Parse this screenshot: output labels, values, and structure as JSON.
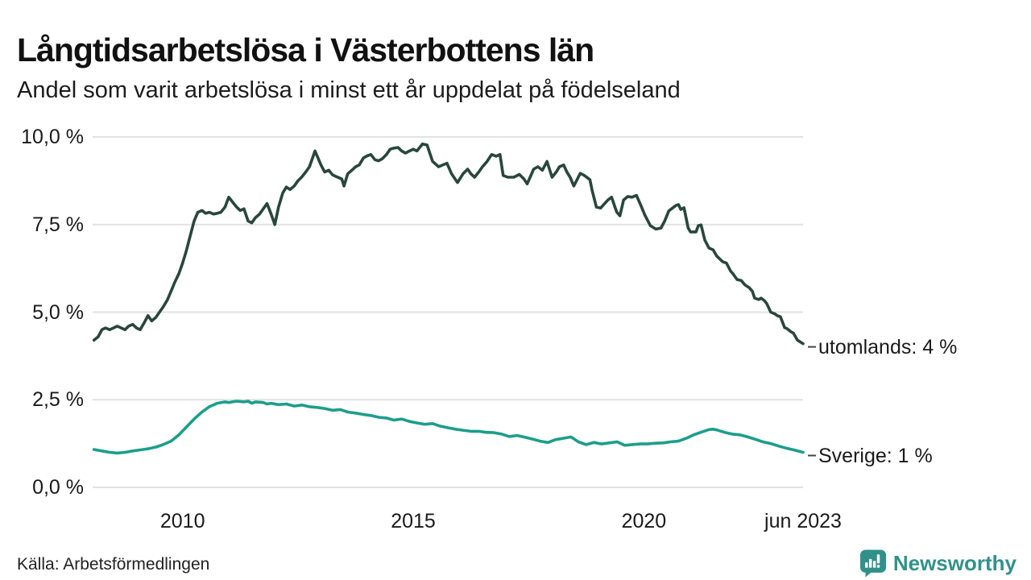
{
  "footer": {
    "source": "Källa: Arbetsförmedlingen",
    "brand": "Newsworthy"
  },
  "colors": {
    "utomlands": "#28463d",
    "sverige": "#1b9e8b",
    "gridline": "#e2e2e2",
    "label_dash": "#444444",
    "brand": "#31918a",
    "text": "#1a1a1a"
  },
  "chart_data": {
    "type": "line",
    "title": "Långtidsarbetslösa i Västerbottens län",
    "subtitle": "Andel som varit arbetslösa i minst ett år uppdelat på födelseland",
    "unit": "%",
    "grid": "horizontal-only",
    "legend_position": "right-end-labels",
    "xlim": [
      2008.05,
      2023.45
    ],
    "ylim": [
      0,
      10
    ],
    "x_ticks": [
      {
        "label": "2010",
        "x": 2010
      },
      {
        "label": "2015",
        "x": 2015
      },
      {
        "label": "2020",
        "x": 2020
      },
      {
        "label": "jun 2023",
        "x": 2023.45
      }
    ],
    "y_ticks": [
      {
        "label": "0,0 %",
        "value": 0
      },
      {
        "label": "2,5 %",
        "value": 2.5
      },
      {
        "label": "5,0 %",
        "value": 5
      },
      {
        "label": "7,5 %",
        "value": 7.5
      },
      {
        "label": "10,0 %",
        "value": 10
      }
    ],
    "series": [
      {
        "name": "utomlands",
        "label": "utomlands: 4 %",
        "end_value": "4 %",
        "color_key": "utomlands",
        "points": [
          [
            2008.08,
            4.2
          ],
          [
            2008.17,
            4.3
          ],
          [
            2008.25,
            4.5
          ],
          [
            2008.33,
            4.55
          ],
          [
            2008.42,
            4.5
          ],
          [
            2008.5,
            4.55
          ],
          [
            2008.58,
            4.6
          ],
          [
            2008.67,
            4.55
          ],
          [
            2008.75,
            4.5
          ],
          [
            2008.83,
            4.6
          ],
          [
            2008.92,
            4.65
          ],
          [
            2009.0,
            4.55
          ],
          [
            2009.08,
            4.5
          ],
          [
            2009.17,
            4.7
          ],
          [
            2009.25,
            4.9
          ],
          [
            2009.33,
            4.75
          ],
          [
            2009.42,
            4.85
          ],
          [
            2009.5,
            5.0
          ],
          [
            2009.58,
            5.15
          ],
          [
            2009.67,
            5.35
          ],
          [
            2009.75,
            5.6
          ],
          [
            2009.83,
            5.85
          ],
          [
            2009.92,
            6.1
          ],
          [
            2010.0,
            6.4
          ],
          [
            2010.08,
            6.75
          ],
          [
            2010.17,
            7.2
          ],
          [
            2010.25,
            7.6
          ],
          [
            2010.33,
            7.85
          ],
          [
            2010.42,
            7.9
          ],
          [
            2010.5,
            7.82
          ],
          [
            2010.58,
            7.85
          ],
          [
            2010.67,
            7.8
          ],
          [
            2010.75,
            7.82
          ],
          [
            2010.83,
            7.85
          ],
          [
            2010.92,
            8.0
          ],
          [
            2011.0,
            8.28
          ],
          [
            2011.08,
            8.15
          ],
          [
            2011.17,
            8.0
          ],
          [
            2011.25,
            7.9
          ],
          [
            2011.33,
            7.95
          ],
          [
            2011.42,
            7.6
          ],
          [
            2011.5,
            7.55
          ],
          [
            2011.58,
            7.7
          ],
          [
            2011.67,
            7.8
          ],
          [
            2011.75,
            7.95
          ],
          [
            2011.83,
            8.1
          ],
          [
            2011.92,
            7.8
          ],
          [
            2012.0,
            7.5
          ],
          [
            2012.08,
            8.0
          ],
          [
            2012.17,
            8.4
          ],
          [
            2012.25,
            8.57
          ],
          [
            2012.33,
            8.5
          ],
          [
            2012.42,
            8.6
          ],
          [
            2012.5,
            8.75
          ],
          [
            2012.58,
            8.85
          ],
          [
            2012.67,
            9.0
          ],
          [
            2012.75,
            9.15
          ],
          [
            2012.87,
            9.6
          ],
          [
            2013.0,
            9.2
          ],
          [
            2013.08,
            9.0
          ],
          [
            2013.17,
            9.05
          ],
          [
            2013.25,
            8.92
          ],
          [
            2013.33,
            8.87
          ],
          [
            2013.45,
            8.8
          ],
          [
            2013.5,
            8.6
          ],
          [
            2013.58,
            8.95
          ],
          [
            2013.67,
            9.05
          ],
          [
            2013.75,
            9.15
          ],
          [
            2013.83,
            9.2
          ],
          [
            2013.92,
            9.4
          ],
          [
            2014.0,
            9.46
          ],
          [
            2014.08,
            9.5
          ],
          [
            2014.17,
            9.35
          ],
          [
            2014.25,
            9.32
          ],
          [
            2014.33,
            9.38
          ],
          [
            2014.42,
            9.5
          ],
          [
            2014.5,
            9.65
          ],
          [
            2014.58,
            9.68
          ],
          [
            2014.67,
            9.7
          ],
          [
            2014.75,
            9.6
          ],
          [
            2014.83,
            9.54
          ],
          [
            2014.92,
            9.6
          ],
          [
            2015.0,
            9.65
          ],
          [
            2015.08,
            9.6
          ],
          [
            2015.2,
            9.8
          ],
          [
            2015.3,
            9.77
          ],
          [
            2015.42,
            9.3
          ],
          [
            2015.55,
            9.15
          ],
          [
            2015.73,
            9.25
          ],
          [
            2015.83,
            8.95
          ],
          [
            2015.96,
            8.7
          ],
          [
            2016.08,
            8.95
          ],
          [
            2016.18,
            9.08
          ],
          [
            2016.25,
            8.95
          ],
          [
            2016.33,
            8.85
          ],
          [
            2016.42,
            9.0
          ],
          [
            2016.5,
            9.15
          ],
          [
            2016.6,
            9.3
          ],
          [
            2016.7,
            9.5
          ],
          [
            2016.8,
            9.45
          ],
          [
            2016.88,
            9.5
          ],
          [
            2016.95,
            8.9
          ],
          [
            2017.05,
            8.85
          ],
          [
            2017.18,
            8.85
          ],
          [
            2017.3,
            8.93
          ],
          [
            2017.4,
            8.8
          ],
          [
            2017.47,
            8.66
          ],
          [
            2017.61,
            9.08
          ],
          [
            2017.7,
            9.15
          ],
          [
            2017.8,
            9.05
          ],
          [
            2017.9,
            9.3
          ],
          [
            2018.01,
            8.85
          ],
          [
            2018.1,
            9.0
          ],
          [
            2018.17,
            9.15
          ],
          [
            2018.26,
            9.2
          ],
          [
            2018.33,
            9.0
          ],
          [
            2018.4,
            8.85
          ],
          [
            2018.48,
            8.6
          ],
          [
            2018.62,
            8.96
          ],
          [
            2018.71,
            8.9
          ],
          [
            2018.83,
            8.78
          ],
          [
            2018.88,
            8.46
          ],
          [
            2018.97,
            8.0
          ],
          [
            2019.06,
            7.97
          ],
          [
            2019.15,
            8.1
          ],
          [
            2019.22,
            8.2
          ],
          [
            2019.3,
            8.28
          ],
          [
            2019.41,
            7.86
          ],
          [
            2019.48,
            7.75
          ],
          [
            2019.56,
            8.2
          ],
          [
            2019.65,
            8.3
          ],
          [
            2019.74,
            8.28
          ],
          [
            2019.84,
            8.33
          ],
          [
            2019.95,
            8.0
          ],
          [
            2020.02,
            7.77
          ],
          [
            2020.14,
            7.47
          ],
          [
            2020.26,
            7.37
          ],
          [
            2020.37,
            7.4
          ],
          [
            2020.45,
            7.6
          ],
          [
            2020.54,
            7.89
          ],
          [
            2020.7,
            8.05
          ],
          [
            2020.75,
            8.07
          ],
          [
            2020.8,
            7.93
          ],
          [
            2020.87,
            7.98
          ],
          [
            2020.96,
            7.4
          ],
          [
            2021.01,
            7.29
          ],
          [
            2021.13,
            7.29
          ],
          [
            2021.18,
            7.47
          ],
          [
            2021.24,
            7.49
          ],
          [
            2021.32,
            7.06
          ],
          [
            2021.41,
            6.83
          ],
          [
            2021.5,
            6.78
          ],
          [
            2021.58,
            6.6
          ],
          [
            2021.71,
            6.44
          ],
          [
            2021.79,
            6.4
          ],
          [
            2021.88,
            6.17
          ],
          [
            2021.93,
            6.1
          ],
          [
            2022.02,
            5.93
          ],
          [
            2022.11,
            5.9
          ],
          [
            2022.19,
            5.78
          ],
          [
            2022.28,
            5.7
          ],
          [
            2022.35,
            5.6
          ],
          [
            2022.4,
            5.4
          ],
          [
            2022.49,
            5.36
          ],
          [
            2022.54,
            5.4
          ],
          [
            2022.61,
            5.33
          ],
          [
            2022.66,
            5.25
          ],
          [
            2022.75,
            5.0
          ],
          [
            2022.84,
            4.95
          ],
          [
            2022.89,
            4.9
          ],
          [
            2022.96,
            4.87
          ],
          [
            2023.05,
            4.56
          ],
          [
            2023.1,
            4.53
          ],
          [
            2023.19,
            4.44
          ],
          [
            2023.24,
            4.4
          ],
          [
            2023.33,
            4.2
          ],
          [
            2023.45,
            4.1
          ]
        ]
      },
      {
        "name": "Sverige",
        "label": "Sverige: 1 %",
        "end_value": "1 %",
        "color_key": "sverige",
        "points": [
          [
            2008.08,
            1.08
          ],
          [
            2008.25,
            1.04
          ],
          [
            2008.42,
            1.0
          ],
          [
            2008.58,
            0.98
          ],
          [
            2008.75,
            1.0
          ],
          [
            2008.92,
            1.04
          ],
          [
            2009.08,
            1.07
          ],
          [
            2009.25,
            1.1
          ],
          [
            2009.42,
            1.15
          ],
          [
            2009.58,
            1.22
          ],
          [
            2009.75,
            1.32
          ],
          [
            2009.92,
            1.5
          ],
          [
            2010.08,
            1.72
          ],
          [
            2010.25,
            1.95
          ],
          [
            2010.42,
            2.15
          ],
          [
            2010.58,
            2.3
          ],
          [
            2010.75,
            2.4
          ],
          [
            2010.92,
            2.44
          ],
          [
            2011.0,
            2.42
          ],
          [
            2011.08,
            2.44
          ],
          [
            2011.17,
            2.46
          ],
          [
            2011.33,
            2.44
          ],
          [
            2011.42,
            2.46
          ],
          [
            2011.5,
            2.4
          ],
          [
            2011.58,
            2.44
          ],
          [
            2011.75,
            2.42
          ],
          [
            2011.83,
            2.38
          ],
          [
            2011.92,
            2.4
          ],
          [
            2012.08,
            2.36
          ],
          [
            2012.25,
            2.38
          ],
          [
            2012.42,
            2.32
          ],
          [
            2012.58,
            2.35
          ],
          [
            2012.75,
            2.3
          ],
          [
            2012.92,
            2.28
          ],
          [
            2013.08,
            2.25
          ],
          [
            2013.25,
            2.2
          ],
          [
            2013.42,
            2.22
          ],
          [
            2013.58,
            2.15
          ],
          [
            2013.75,
            2.12
          ],
          [
            2013.92,
            2.08
          ],
          [
            2014.08,
            2.05
          ],
          [
            2014.25,
            2.0
          ],
          [
            2014.42,
            1.98
          ],
          [
            2014.58,
            1.92
          ],
          [
            2014.75,
            1.95
          ],
          [
            2014.92,
            1.88
          ],
          [
            2015.08,
            1.84
          ],
          [
            2015.25,
            1.8
          ],
          [
            2015.42,
            1.82
          ],
          [
            2015.58,
            1.75
          ],
          [
            2015.75,
            1.7
          ],
          [
            2015.92,
            1.66
          ],
          [
            2016.08,
            1.63
          ],
          [
            2016.25,
            1.6
          ],
          [
            2016.42,
            1.6
          ],
          [
            2016.58,
            1.57
          ],
          [
            2016.75,
            1.56
          ],
          [
            2016.92,
            1.52
          ],
          [
            2017.08,
            1.45
          ],
          [
            2017.25,
            1.48
          ],
          [
            2017.42,
            1.43
          ],
          [
            2017.58,
            1.38
          ],
          [
            2017.75,
            1.32
          ],
          [
            2017.92,
            1.28
          ],
          [
            2018.08,
            1.36
          ],
          [
            2018.25,
            1.4
          ],
          [
            2018.42,
            1.44
          ],
          [
            2018.58,
            1.3
          ],
          [
            2018.75,
            1.22
          ],
          [
            2018.92,
            1.28
          ],
          [
            2019.08,
            1.24
          ],
          [
            2019.25,
            1.27
          ],
          [
            2019.42,
            1.3
          ],
          [
            2019.58,
            1.2
          ],
          [
            2019.75,
            1.22
          ],
          [
            2019.92,
            1.24
          ],
          [
            2020.08,
            1.24
          ],
          [
            2020.25,
            1.26
          ],
          [
            2020.42,
            1.27
          ],
          [
            2020.58,
            1.3
          ],
          [
            2020.75,
            1.32
          ],
          [
            2020.92,
            1.4
          ],
          [
            2021.08,
            1.5
          ],
          [
            2021.25,
            1.58
          ],
          [
            2021.42,
            1.65
          ],
          [
            2021.5,
            1.66
          ],
          [
            2021.58,
            1.64
          ],
          [
            2021.75,
            1.57
          ],
          [
            2021.92,
            1.52
          ],
          [
            2022.08,
            1.5
          ],
          [
            2022.25,
            1.44
          ],
          [
            2022.42,
            1.37
          ],
          [
            2022.58,
            1.3
          ],
          [
            2022.75,
            1.25
          ],
          [
            2022.92,
            1.18
          ],
          [
            2023.08,
            1.12
          ],
          [
            2023.25,
            1.07
          ],
          [
            2023.45,
            1.0
          ]
        ]
      }
    ]
  }
}
